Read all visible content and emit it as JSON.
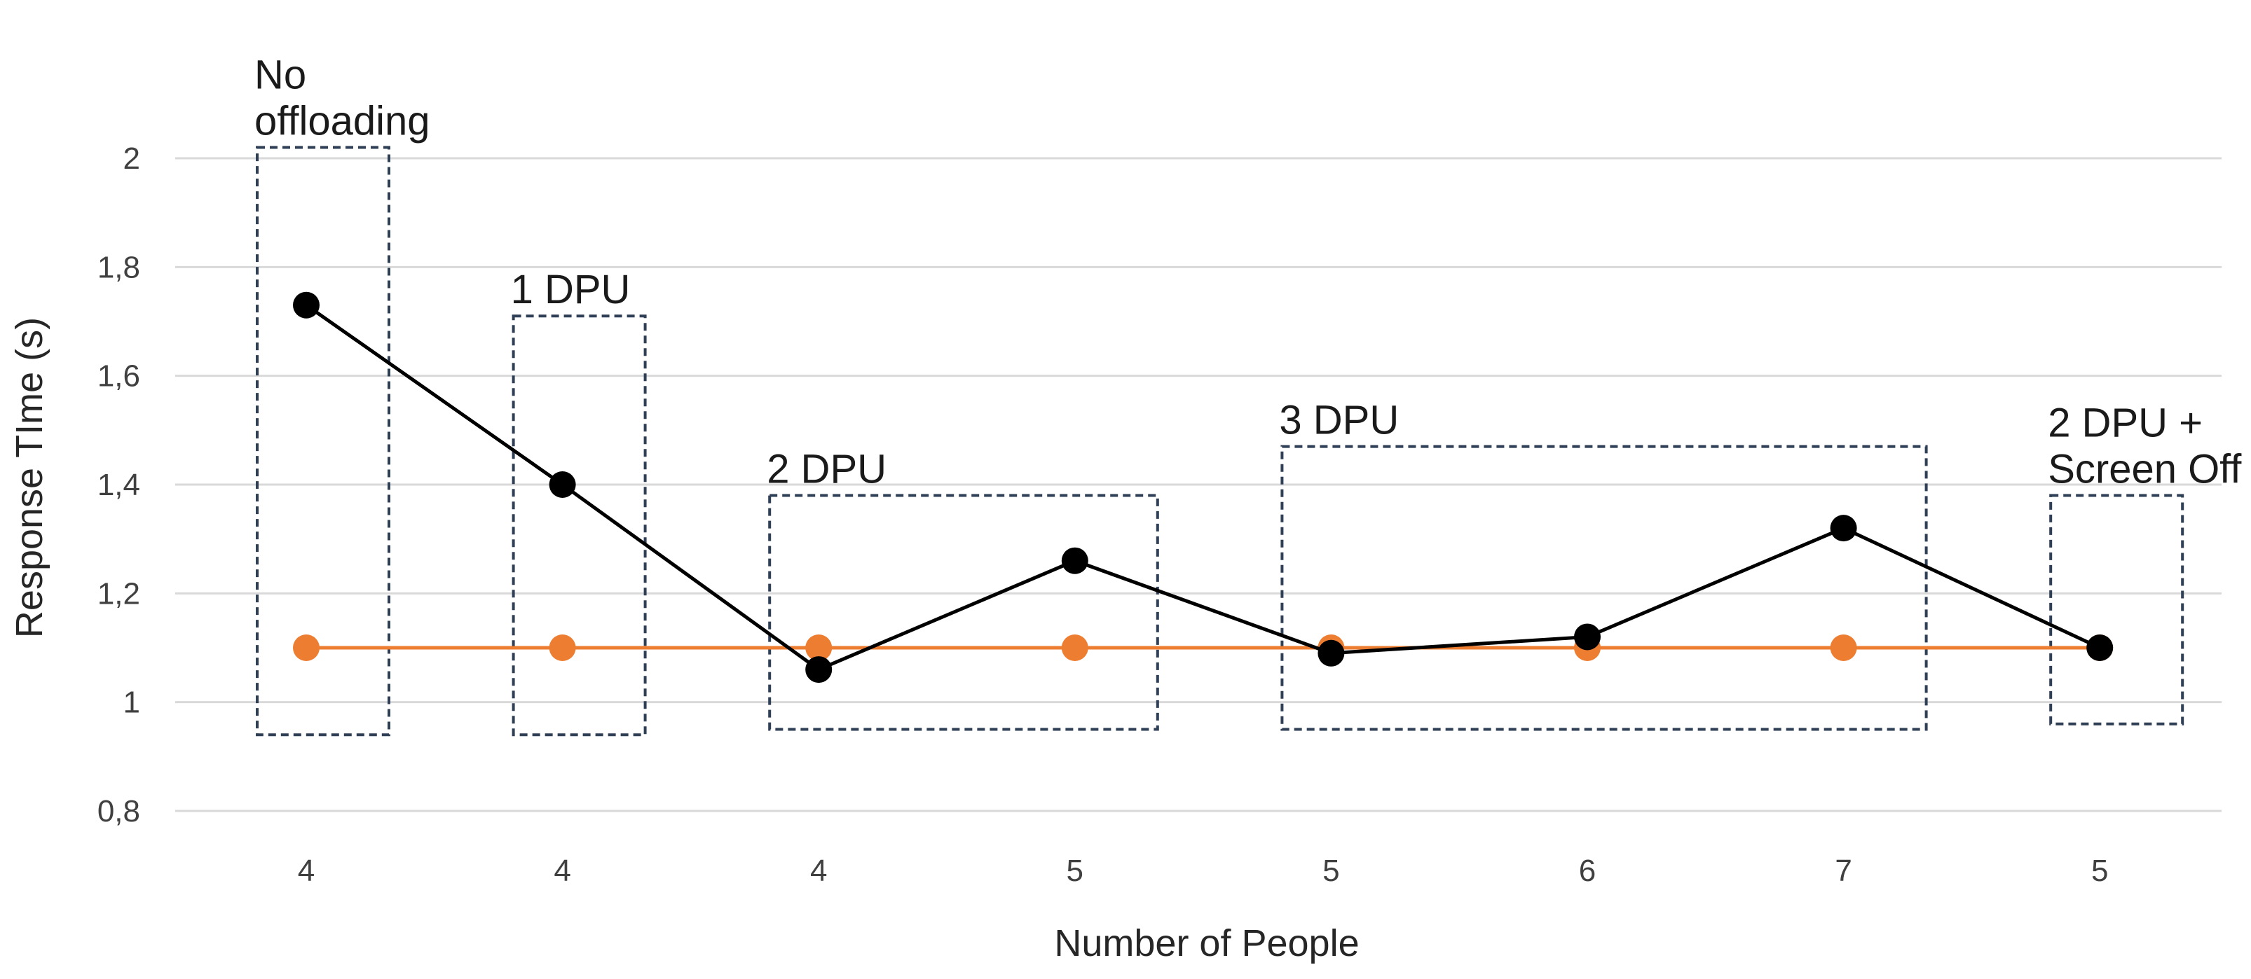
{
  "chart_data": {
    "type": "line",
    "title": "",
    "xlabel": "Number of People",
    "ylabel": "Response TIme (s)",
    "categories": [
      "4",
      "4",
      "4",
      "5",
      "5",
      "6",
      "7",
      "5"
    ],
    "ylim": [
      0.8,
      2.0
    ],
    "yticks": [
      "0,8",
      "1",
      "1,2",
      "1,4",
      "1,6",
      "1,8",
      "2"
    ],
    "grid": true,
    "legend": "none",
    "series": [
      {
        "color": "#000000",
        "values": [
          1.73,
          1.4,
          1.06,
          1.26,
          1.09,
          1.12,
          1.32,
          1.1
        ]
      },
      {
        "color": "#ED7D31",
        "values": [
          1.1,
          1.1,
          1.1,
          1.1,
          1.1,
          1.1,
          1.1,
          1.1
        ]
      }
    ],
    "annotations": [
      {
        "lines": [
          "No",
          "offloading"
        ],
        "first": 0,
        "last": 0,
        "ytop": 2.02,
        "ybottom": 0.94
      },
      {
        "lines": [
          "1 DPU"
        ],
        "first": 1,
        "last": 1,
        "ytop": 1.71,
        "ybottom": 0.94
      },
      {
        "lines": [
          "2 DPU"
        ],
        "first": 2,
        "last": 3,
        "ytop": 1.38,
        "ybottom": 0.95
      },
      {
        "lines": [
          "3 DPU"
        ],
        "first": 4,
        "last": 6,
        "ytop": 1.47,
        "ybottom": 0.95
      },
      {
        "lines": [
          "2 DPU +",
          "Screen Off"
        ],
        "first": 7,
        "last": 7,
        "ytop": 1.38,
        "ybottom": 0.96
      }
    ],
    "box_color": "#2F3F56"
  }
}
